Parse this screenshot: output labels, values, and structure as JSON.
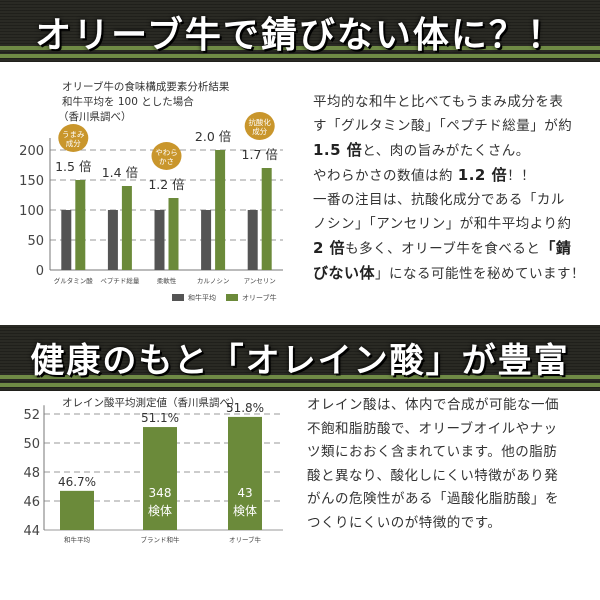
{
  "banner1": {
    "title": "オリーブ牛で錆びない体に？！"
  },
  "banner2": {
    "title": "健康のもと「オレイン酸」が豊富"
  },
  "colors": {
    "wagyu": "#545454",
    "olive": "#6b8a3a",
    "banner_bg": "#2a2a24",
    "banner_stripe": "#6f8a45"
  },
  "chart_data": [
    {
      "type": "bar",
      "title": "オリーブ牛の食味構成要素分析結果",
      "subtitle": "和牛平均を 100 とした場合",
      "note": "（香川県調べ）",
      "categories": [
        "グルタミン酸",
        "ペプチド総量",
        "柔軟性",
        "カルノシン",
        "アンセリン"
      ],
      "series": [
        {
          "name": "和牛平均",
          "values": [
            100,
            100,
            100,
            100,
            100
          ]
        },
        {
          "name": "オリーブ牛",
          "values": [
            150,
            140,
            120,
            200,
            170
          ]
        }
      ],
      "bar_labels": [
        "1.5 倍",
        "1.4 倍",
        "1.2 倍",
        "2.0 倍",
        "1.7 倍"
      ],
      "badges": [
        {
          "category": 0,
          "lines": [
            "うまみ",
            "成分"
          ]
        },
        {
          "category": 2,
          "lines": [
            "やわら",
            "かさ"
          ]
        },
        {
          "category": 4,
          "lines": [
            "抗酸化",
            "成分"
          ]
        }
      ],
      "yticks": [
        0,
        50,
        100,
        150,
        200
      ],
      "ylim": [
        0,
        220
      ],
      "grid": true,
      "legend": "bottom"
    },
    {
      "type": "bar",
      "title": "オレイン酸平均測定値（香川県調べ）",
      "categories": [
        "和牛平均",
        "ブランド和牛",
        "オリーブ牛"
      ],
      "values": [
        46.7,
        51.1,
        51.8
      ],
      "value_labels": [
        "46.7%",
        "51.1%",
        "51.8%"
      ],
      "sample_labels": [
        null,
        {
          "count": "348",
          "unit": "検体"
        },
        {
          "count": "43",
          "unit": "検体"
        }
      ],
      "yticks": [
        44,
        46,
        48,
        50,
        52
      ],
      "ylim": [
        44,
        52.6
      ],
      "grid": true
    }
  ],
  "desc1": {
    "l1": "平均的な和牛と比べてもうまみ成分を表",
    "l2": "す「グルタミン酸」「ペプチド総量」が約",
    "l3_b": "1.5 倍",
    "l3": "と、肉の旨みがたくさん。",
    "l4a": "やわらかさの数値は約",
    "l4_b": "1.2 倍",
    "l4b": "！！",
    "l5": "一番の注目は、抗酸化成分である「カル",
    "l6": "ノシン」「アンセリン」が和牛平均より約",
    "l7_b": "2 倍",
    "l7a": "も多く、オリーブ牛を食べると",
    "l7_b2": "「錆",
    "l8_b": "びない体",
    "l8": "」になる可能性を秘めています！"
  },
  "desc2": {
    "lines": [
      "オレイン酸は、体内で合成が可能な一価",
      "不飽和脂肪酸で、オリーブオイルやナッ",
      "ツ類におおく含まれています。他の脂肪",
      "酸と異なり、酸化しにくい特徴があり発",
      "がんの危険性がある「過酸化脂肪酸」を",
      "つくりにくいのが特徴的です。"
    ]
  }
}
